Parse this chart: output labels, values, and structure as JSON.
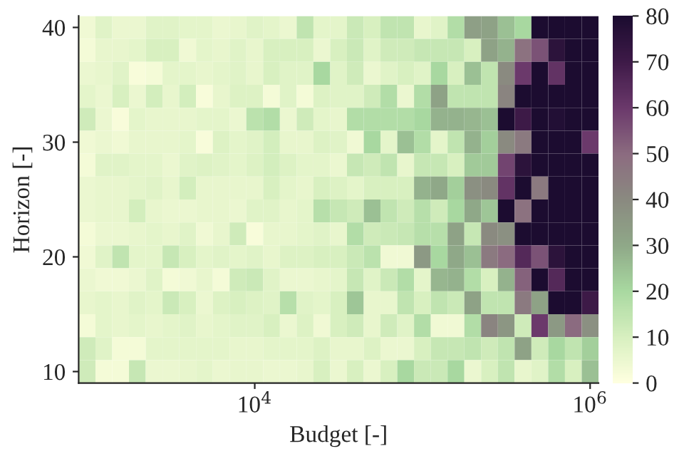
{
  "chart_data": {
    "type": "heatmap",
    "xlabel": "Budget [-]",
    "ylabel": "Horizon [-]",
    "x": [
      1000,
      1259,
      1585,
      1995,
      2512,
      3162,
      3981,
      5012,
      6310,
      7943,
      10000,
      12589,
      15849,
      19953,
      25119,
      31623,
      39811,
      50119,
      63096,
      79433,
      100000,
      125893,
      158489,
      199526,
      251189,
      316228,
      398107,
      501187,
      630957,
      794328,
      1000000
    ],
    "y": [
      40,
      38,
      36,
      34,
      32,
      30,
      28,
      26,
      24,
      22,
      20,
      18,
      16,
      14,
      12,
      10
    ],
    "log": "x",
    "xlim": [
      891,
      1122018
    ],
    "xticks": [
      {
        "value": 10000,
        "label": "10$^{4}$"
      },
      {
        "value": 1000000,
        "label": "10$^{6}$"
      }
    ],
    "ylim": [
      9,
      41
    ],
    "yticks": [
      10,
      20,
      30,
      40
    ],
    "clim": [
      0,
      80
    ],
    "cticks": [
      0,
      10,
      20,
      30,
      40,
      50,
      60,
      70,
      80
    ],
    "cells": [
      [
        4,
        8,
        5,
        5,
        8,
        8,
        7,
        7,
        5,
        6,
        8,
        7,
        5,
        15,
        7,
        7,
        13,
        10,
        15,
        15,
        6,
        8,
        18,
        33,
        32,
        25,
        20,
        80,
        80,
        80,
        80
      ],
      [
        3,
        6,
        6,
        7,
        10,
        10,
        4,
        7,
        6,
        8,
        6,
        10,
        10,
        10,
        5,
        10,
        13,
        8,
        12,
        12,
        14,
        14,
        14,
        10,
        32,
        28,
        48,
        55,
        75,
        80,
        80
      ],
      [
        5,
        6,
        8,
        2,
        3,
        7,
        7,
        6,
        7,
        8,
        6,
        10,
        8,
        8,
        20,
        8,
        12,
        5,
        8,
        10,
        8,
        20,
        10,
        25,
        15,
        40,
        60,
        80,
        62,
        80,
        80
      ],
      [
        7,
        5,
        10,
        5,
        11,
        6,
        11,
        2,
        6,
        9,
        9,
        3,
        8,
        3,
        9,
        8,
        8,
        12,
        18,
        5,
        18,
        32,
        15,
        15,
        15,
        42,
        80,
        80,
        80,
        80,
        80
      ],
      [
        12,
        5,
        2,
        7,
        6,
        6,
        6,
        7,
        7,
        5,
        16,
        18,
        5,
        12,
        7,
        6,
        18,
        18,
        18,
        18,
        20,
        28,
        28,
        27,
        25,
        80,
        70,
        80,
        78,
        80,
        80
      ],
      [
        4,
        5,
        4,
        6,
        6,
        6,
        7,
        2,
        9,
        7,
        8,
        11,
        6,
        6,
        9,
        8,
        4,
        20,
        7,
        25,
        18,
        7,
        15,
        28,
        22,
        40,
        45,
        80,
        80,
        80,
        60
      ],
      [
        3,
        8,
        8,
        7,
        7,
        5,
        8,
        9,
        8,
        7,
        9,
        11,
        9,
        7,
        7,
        5,
        14,
        12,
        15,
        6,
        14,
        14,
        10,
        23,
        23,
        58,
        75,
        80,
        80,
        80,
        80
      ],
      [
        5,
        6,
        6,
        7,
        8,
        6,
        11,
        6,
        6,
        6,
        6,
        10,
        7,
        6,
        10,
        9,
        7,
        10,
        10,
        10,
        28,
        30,
        22,
        38,
        40,
        62,
        80,
        45,
        80,
        80,
        80
      ],
      [
        5,
        6,
        6,
        11,
        6,
        5,
        5,
        6,
        6,
        5,
        8,
        8,
        6,
        7,
        17,
        14,
        12,
        25,
        15,
        12,
        17,
        12,
        20,
        30,
        24,
        80,
        48,
        80,
        80,
        80,
        80
      ],
      [
        3,
        5,
        5,
        6,
        7,
        6,
        8,
        4,
        6,
        12,
        2,
        6,
        6,
        7,
        8,
        6,
        18,
        12,
        13,
        14,
        17,
        17,
        32,
        14,
        40,
        38,
        80,
        80,
        80,
        80,
        80
      ],
      [
        4,
        8,
        15,
        7,
        7,
        14,
        10,
        7,
        8,
        7,
        8,
        6,
        9,
        9,
        10,
        10,
        13,
        16,
        4,
        4,
        35,
        20,
        30,
        25,
        45,
        50,
        65,
        55,
        75,
        80,
        80
      ],
      [
        5,
        4,
        4,
        5,
        8,
        3,
        4,
        6,
        3,
        12,
        13,
        8,
        5,
        5,
        6,
        7,
        14,
        8,
        13,
        18,
        7,
        27,
        28,
        18,
        10,
        28,
        52,
        80,
        65,
        80,
        80
      ],
      [
        6,
        7,
        6,
        8,
        7,
        13,
        10,
        5,
        9,
        10,
        9,
        8,
        17,
        8,
        7,
        10,
        24,
        6,
        6,
        15,
        10,
        15,
        13,
        32,
        15,
        15,
        45,
        32,
        80,
        80,
        70
      ],
      [
        3,
        7,
        6,
        7,
        6,
        7,
        8,
        6,
        7,
        8,
        8,
        10,
        5,
        9,
        4,
        10,
        12,
        6,
        12,
        8,
        18,
        4,
        4,
        18,
        42,
        36,
        12,
        60,
        35,
        50,
        38
      ],
      [
        12,
        8,
        3,
        3,
        7,
        7,
        7,
        7,
        7,
        6,
        6,
        7,
        7,
        7,
        9,
        6,
        6,
        9,
        5,
        5,
        10,
        14,
        14,
        15,
        12,
        15,
        32,
        12,
        20,
        15,
        22
      ],
      [
        12,
        3,
        3,
        14,
        5,
        5,
        6,
        7,
        5,
        6,
        6,
        5,
        5,
        6,
        10,
        5,
        10,
        5,
        10,
        20,
        13,
        13,
        20,
        5,
        10,
        15,
        6,
        8,
        18,
        10,
        25
      ]
    ]
  }
}
